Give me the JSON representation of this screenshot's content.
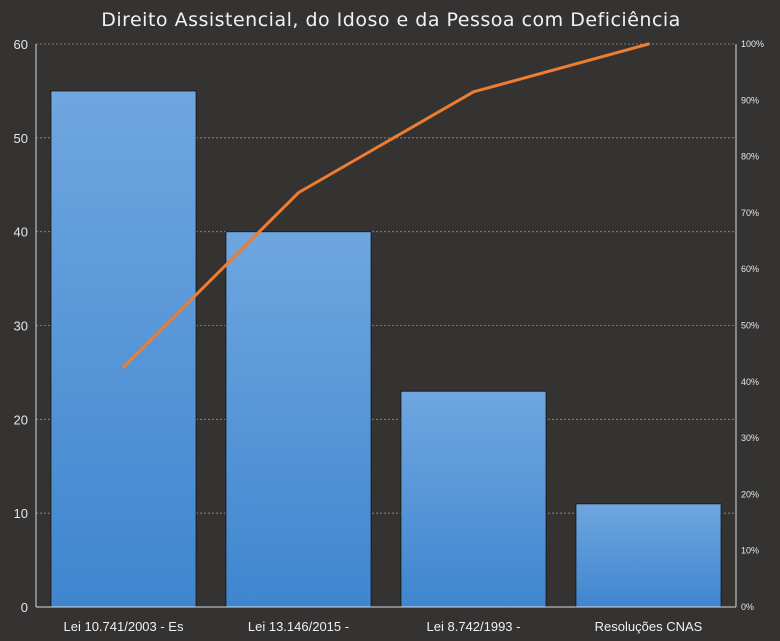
{
  "chart_data": {
    "type": "bar",
    "title": "Direito Assistencial, do Idoso e da Pessoa com Deficiência",
    "categories": [
      "Lei 10.741/2003 - Es",
      "Lei 13.146/2015 -",
      "Lei 8.742/1993 -",
      "Resoluções CNAS"
    ],
    "values": [
      55,
      40,
      23,
      11
    ],
    "ylim": [
      0,
      60
    ],
    "yticks": [
      0,
      10,
      20,
      30,
      40,
      50,
      60
    ],
    "y2lim": [
      0,
      100
    ],
    "y2ticks": [
      "0%",
      "10%",
      "20%",
      "30%",
      "40%",
      "50%",
      "60%",
      "70%",
      "80%",
      "90%",
      "100%"
    ],
    "cumulative_percent": [
      42.6,
      73.6,
      91.5,
      100
    ],
    "grid": true,
    "legend": "none",
    "colors": {
      "background": "#353332",
      "bar_top": "#6fa6e0",
      "bar_bottom": "#3f86cf",
      "line": "#ed7d31"
    }
  }
}
